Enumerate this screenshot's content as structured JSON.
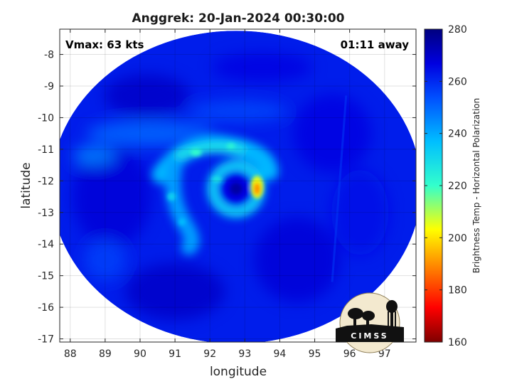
{
  "chart_data": {
    "type": "heatmap",
    "title": "Anggrek: 20-Jan-2024 00:30:00",
    "xlabel": "longitude",
    "ylabel": "latitude",
    "xlim": [
      87.7,
      97.9
    ],
    "ylim": [
      -17.1,
      -7.2
    ],
    "xticks": [
      "88",
      "89",
      "90",
      "91",
      "92",
      "93",
      "94",
      "95",
      "96",
      "97"
    ],
    "yticks": [
      "-8",
      "-9",
      "-10",
      "-11",
      "-12",
      "-13",
      "-14",
      "-15",
      "-16",
      "-17"
    ],
    "annotations": {
      "vmax": "Vmax: 63 kts",
      "offset": "01:11 away"
    },
    "storm_center": {
      "lon": 92.7,
      "lat": -12.3
    },
    "swath": {
      "center_lon": 92.75,
      "center_lat": -12.2,
      "radius_lon": 5.3,
      "radius_lat": 4.95,
      "background_temp_K": 262
    },
    "features": [
      {
        "name": "eye",
        "lon": 92.75,
        "lat": -12.25,
        "temp_K": 266
      },
      {
        "name": "eyewall",
        "lon": 92.75,
        "lat": -12.25,
        "temp_K": 232
      },
      {
        "name": "eyewall-hotspot",
        "lon": 93.35,
        "lat": -12.2,
        "temp_K": 192
      },
      {
        "name": "northern-band",
        "lon": 92.0,
        "lat": -11.1,
        "temp_K": 236
      },
      {
        "name": "western-band",
        "lon": 91.2,
        "lat": -12.7,
        "temp_K": 240
      },
      {
        "name": "outer-band",
        "lon": 90.5,
        "lat": -10.6,
        "temp_K": 250
      }
    ],
    "colorbar": {
      "label": "Brightness Temp - Horizontal Polarization",
      "range": [
        160,
        280
      ],
      "ticks": [
        "160",
        "180",
        "200",
        "220",
        "240",
        "260",
        "280"
      ],
      "colormap": "jet"
    },
    "grid": true,
    "legend": "none"
  },
  "logo": {
    "text": "CIMSS"
  }
}
